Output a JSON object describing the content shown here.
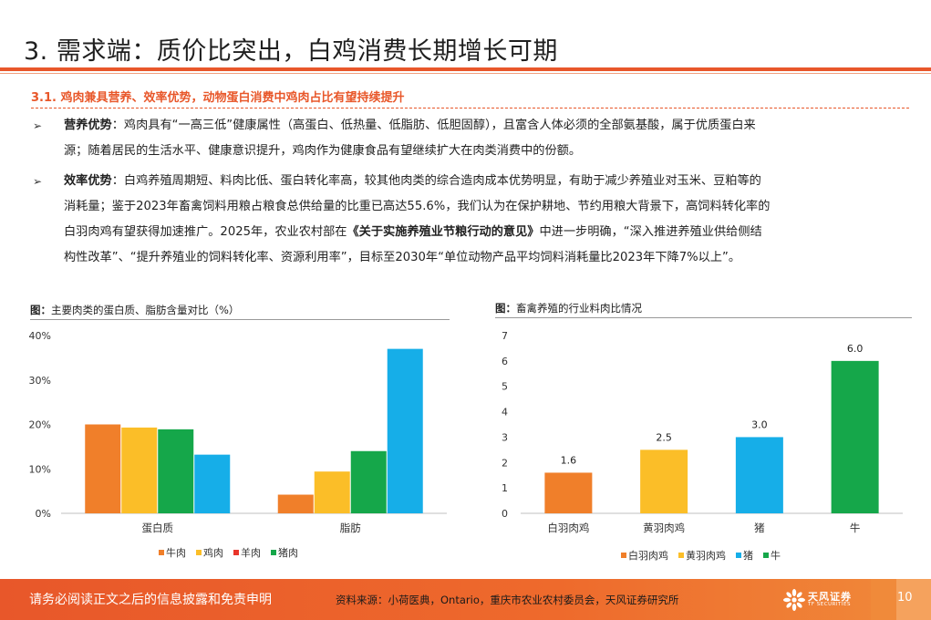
{
  "page": {
    "title": "3. 需求端：质价比突出，白鸡消费长期增长可期",
    "subheading": "3.1. 鸡肉兼具营养、效率优势，动物蛋白消费中鸡肉占比有望持续提升",
    "bullet_marker": "➢",
    "bullets": [
      {
        "lead": "营养优势",
        "lines": [
          "：鸡肉具有“一高三低”健康属性（高蛋白、低热量、低脂肪、低胆固醇），且富含人体必须的全部氨基酸，属于优质蛋白来",
          "源；随着居民的生活水平、健康意识提升，鸡肉作为健康食品有望继续扩大在肉类消费中的份额。"
        ]
      },
      {
        "lead": "效率优势",
        "line1": "：白鸡养殖周期短、料肉比低、蛋白转化率高，较其他肉类的综合造肉成本优势明显，有助于减少养殖业对玉米、豆粕等的",
        "line2": "消耗量；鉴于2023年畜禽饲料用粮占粮食总供给量的比重已高达55.6%，我们认为在保护耕地、节约用粮大背景下，高饲料转化率的",
        "line3_pre": "白羽肉鸡有望获得加速推广。2025年，农业农村部在",
        "line3_book": "《关于实施养殖业节粮行动的意见》",
        "line3_post": "中进一步明确，“深入推进养殖业供给侧结",
        "line4": "构性改革”、“提升养殖业的饲料转化率、资源利用率”，目标至2030年“单位动物产品平均饲料消耗量比2023年下降7%以上”。"
      }
    ]
  },
  "chart1": {
    "fig_label": "图：",
    "title": "主要肉类的蛋白质、脂肪含量对比（%）"
  },
  "chart2": {
    "fig_label": "图：",
    "title": "畜禽养殖的行业料肉比情况"
  },
  "chart_data": [
    {
      "type": "bar",
      "title": "主要肉类的蛋白质、脂肪含量对比（%）",
      "categories": [
        "蛋白质",
        "脂肪"
      ],
      "series": [
        {
          "name": "牛肉",
          "values": [
            20,
            4.2
          ],
          "color": "#f07f2a"
        },
        {
          "name": "鸡肉",
          "values": [
            19.3,
            9.4
          ],
          "color": "#fbbe28"
        },
        {
          "name": "羊肉",
          "values": [
            0,
            0
          ],
          "color": "#e9352b"
        },
        {
          "name": "猪肉",
          "values": [
            18.9,
            14
          ],
          "color": "#15a74a"
        },
        {
          "name": "",
          "values": [
            13.2,
            37
          ],
          "color": "#16aee8"
        }
      ],
      "ylim": [
        0,
        40
      ],
      "yticks": [
        "0%",
        "10%",
        "20%",
        "30%",
        "40%"
      ],
      "ytick_values": [
        0,
        10,
        20,
        30,
        40
      ],
      "grid": false,
      "legend": "bottom"
    },
    {
      "type": "bar",
      "title": "畜禽养殖的行业料肉比情况",
      "categories": [
        "白羽肉鸡",
        "黄羽肉鸡",
        "猪",
        "牛"
      ],
      "values": [
        1.6,
        2.5,
        3.0,
        6.0
      ],
      "labels": [
        "1.6",
        "2.5",
        "3.0",
        "6.0"
      ],
      "colors": [
        "#f07f2a",
        "#fbbe28",
        "#16aee8",
        "#15a74a"
      ],
      "ylim": [
        0,
        7
      ],
      "yticks": [
        "0",
        "1",
        "2",
        "3",
        "4",
        "5",
        "6",
        "7"
      ],
      "ytick_values": [
        0,
        1,
        2,
        3,
        4,
        5,
        6,
        7
      ],
      "legend_entries": [
        {
          "name": "白羽肉鸡",
          "color": "#f07f2a"
        },
        {
          "name": "黄羽肉鸡",
          "color": "#fbbe28"
        },
        {
          "name": "猪",
          "color": "#16aee8"
        },
        {
          "name": "牛",
          "color": "#15a74a"
        }
      ],
      "grid": false,
      "legend": "bottom"
    }
  ],
  "footer": {
    "disclaimer": "请务必阅读正文之后的信息披露和免责申明",
    "source": "资料来源：小荷医典，Ontario，重庆市农业农村委员会，天风证券研究所",
    "logo_cn": "天风证券",
    "logo_en": "TF SECURITIES",
    "page_number": "10",
    "accent_color": "#e8572a"
  }
}
